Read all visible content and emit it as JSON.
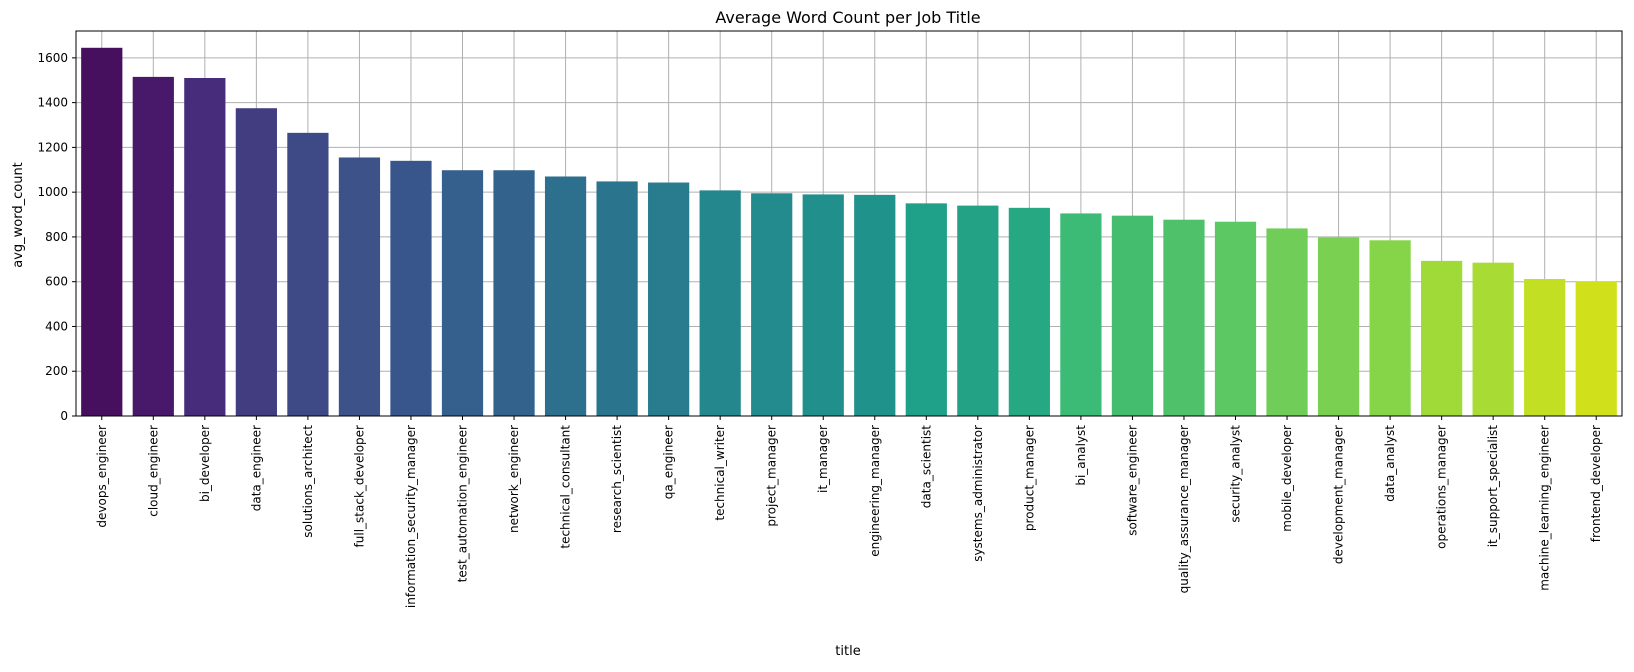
{
  "chart_data": {
    "type": "bar",
    "title": "Average Word Count per Job Title",
    "xlabel": "title",
    "ylabel": "avg_word_count",
    "ylim": [
      0,
      1720
    ],
    "yticks": [
      0,
      200,
      400,
      600,
      800,
      1000,
      1200,
      1400,
      1600
    ],
    "grid": true,
    "legend": "none",
    "palette": "viridis",
    "categories": [
      "devops_engineer",
      "cloud_engineer",
      "bi_developer",
      "data_engineer",
      "solutions_architect",
      "full_stack_developer",
      "information_security_manager",
      "test_automation_engineer",
      "network_engineer",
      "technical_consultant",
      "research_scientist",
      "qa_engineer",
      "technical_writer",
      "project_manager",
      "it_manager",
      "engineering_manager",
      "data_scientist",
      "systems_administrator",
      "product_manager",
      "bi_analyst",
      "software_engineer",
      "quality_assurance_manager",
      "security_analyst",
      "mobile_developer",
      "development_manager",
      "data_analyst",
      "operations_manager",
      "it_support_specialist",
      "machine_learning_engineer",
      "frontend_developer"
    ],
    "values": [
      1645,
      1515,
      1510,
      1375,
      1265,
      1155,
      1140,
      1098,
      1098,
      1070,
      1048,
      1043,
      1008,
      995,
      990,
      988,
      950,
      940,
      930,
      905,
      895,
      877,
      868,
      838,
      798,
      785,
      693,
      685,
      612,
      602
    ],
    "colors": [
      "#46105f",
      "#48196b",
      "#462c7a",
      "#423c81",
      "#3d4a86",
      "#3c5289",
      "#39568c",
      "#355f8d",
      "#33638d",
      "#2d708e",
      "#2b748e",
      "#287c8e",
      "#24878e",
      "#238a8d",
      "#21908d",
      "#20928c",
      "#1fa088",
      "#23a286",
      "#26a883",
      "#3bbb75",
      "#45bd6e",
      "#4fc16b",
      "#5cc863",
      "#6fcd58",
      "#7ad151",
      "#86d549",
      "#a0da39",
      "#a8db34",
      "#c2df23",
      "#d0e11c"
    ]
  }
}
